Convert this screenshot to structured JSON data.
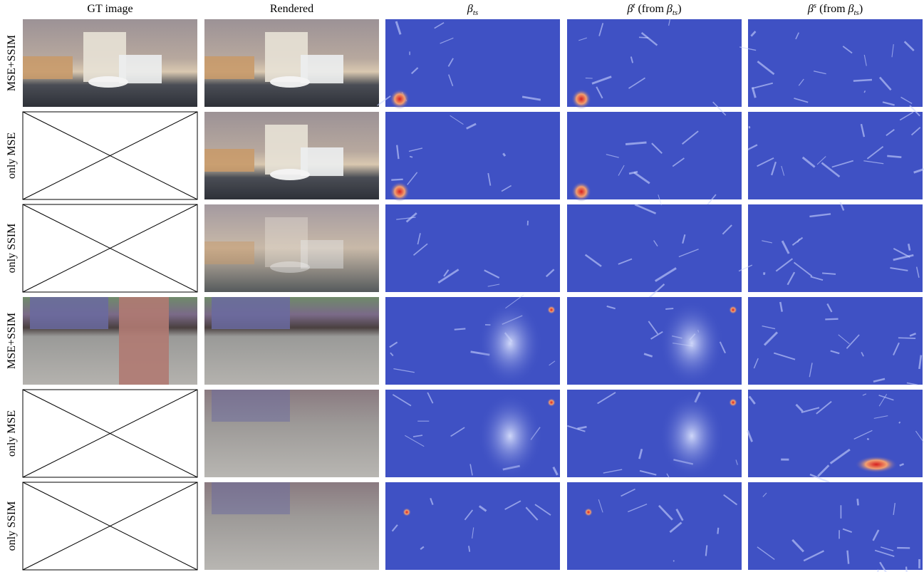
{
  "columns": [
    {
      "parts": [
        {
          "text": "GT image"
        }
      ]
    },
    {
      "parts": [
        {
          "text": "Rendered"
        }
      ]
    },
    {
      "parts": [
        {
          "text": "β",
          "style": "italic"
        },
        {
          "text": "ts",
          "style": "sub"
        }
      ]
    },
    {
      "parts": [
        {
          "text": "β",
          "style": "italic"
        },
        {
          "text": "t",
          "style": "sup"
        },
        {
          "text": " (from "
        },
        {
          "text": "β",
          "style": "italic"
        },
        {
          "text": "ts",
          "style": "sub"
        },
        {
          "text": ")"
        }
      ]
    },
    {
      "parts": [
        {
          "text": "β",
          "style": "italic"
        },
        {
          "text": "s",
          "style": "sup"
        },
        {
          "text": " (from "
        },
        {
          "text": "β",
          "style": "italic"
        },
        {
          "text": "ts",
          "style": "sub"
        },
        {
          "text": ")"
        }
      ]
    }
  ],
  "rows": [
    "MSE+SSIM",
    "only MSE",
    "only SSIM",
    "MSE+SSIM",
    "only MSE",
    "only SSIM"
  ]
}
